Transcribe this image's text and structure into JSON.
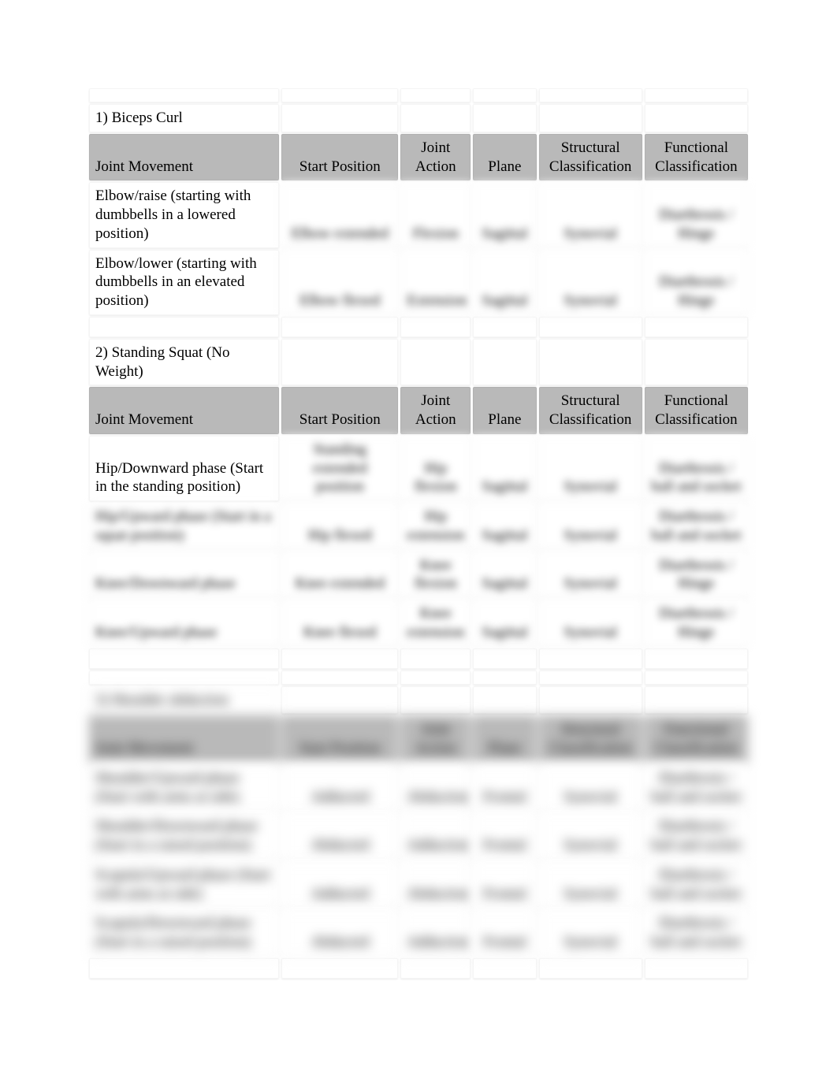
{
  "colors": {
    "header_bg": "#b9b9b9",
    "cell_bg": "#ffffff",
    "text": "#000000",
    "page_bg": "#ffffff"
  },
  "typography": {
    "family": "Times New Roman",
    "body_fontsize": 19,
    "line_height": 1.25
  },
  "column_widths_pct": [
    28.5,
    17.5,
    10.5,
    9.5,
    15.5,
    15.5
  ],
  "headers": {
    "joint_movement": "Joint Movement",
    "start_position": "Start Position",
    "joint_action": "Joint Action",
    "plane": "Plane",
    "structural": "Structural Classification",
    "functional": "Functional Classification"
  },
  "sections": [
    {
      "title": "1) Biceps Curl",
      "rows": [
        {
          "movement": "Elbow/raise (starting with dumbbells in a lowered position)",
          "start": "Elbow extended",
          "action": "Flexion",
          "plane": "Sagittal",
          "structural": "Synovial",
          "functional": "Diarthrosis / Hinge"
        },
        {
          "movement": "Elbow/lower (starting with dumbbells in an elevated position)",
          "start": "Elbow flexed",
          "action": "Extension",
          "plane": "Sagittal",
          "structural": "Synovial",
          "functional": "Diarthrosis / Hinge"
        }
      ]
    },
    {
      "title": "2) Standing Squat (No Weight)",
      "rows": [
        {
          "movement": "Hip/Downward phase (Start in the standing position)",
          "start": "Standing extended position",
          "action": "Hip flexion",
          "plane": "Sagittal",
          "structural": "Synovial",
          "functional": "Diarthrosis / ball and socket"
        },
        {
          "movement": "Hip/Upward phase (Start in a squat position)",
          "start": "Hip flexed",
          "action": "Hip extension",
          "plane": "Sagittal",
          "structural": "Synovial",
          "functional": "Diarthrosis / ball and socket"
        },
        {
          "movement": "Knee/Downward phase",
          "start": "Knee extended",
          "action": "Knee flexion",
          "plane": "Sagittal",
          "structural": "Synovial",
          "functional": "Diarthrosis / Hinge"
        },
        {
          "movement": "Knee/Upward phase",
          "start": "Knee flexed",
          "action": "Knee extension",
          "plane": "Sagittal",
          "structural": "Synovial",
          "functional": "Diarthrosis / Hinge"
        }
      ]
    },
    {
      "title": "3) Shoulder abduction",
      "rows": [
        {
          "movement": "Shoulder/Upward phase (Start with arms at side)",
          "start": "Adducted",
          "action": "Abduction",
          "plane": "Frontal",
          "structural": "Synovial",
          "functional": "Diarthrosis / ball and socket"
        },
        {
          "movement": "Shoulder/Downward phase (Start in a raised position)",
          "start": "Abducted",
          "action": "Adduction",
          "plane": "Frontal",
          "structural": "Synovial",
          "functional": "Diarthrosis / ball and socket"
        },
        {
          "movement": "Scapula/Upward phase (Start with arms at side)",
          "start": "Adducted",
          "action": "Abduction",
          "plane": "Frontal",
          "structural": "Synovial",
          "functional": "Diarthrosis / ball and socket"
        },
        {
          "movement": "Scapula/Downward phase (Start in a raised position)",
          "start": "Abducted",
          "action": "Adduction",
          "plane": "Frontal",
          "structural": "Synovial",
          "functional": "Diarthrosis / ball and socket"
        }
      ]
    }
  ]
}
